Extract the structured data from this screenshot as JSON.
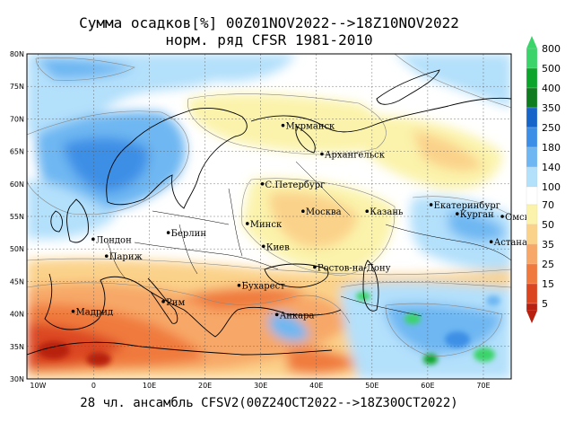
{
  "title_line1": "Сумма осадков[%] 00Z01NOV2022-->18Z10NOV2022",
  "title_line2": "норм. ряд CFSR 1981-2010",
  "footer": "28 чл. ансамбль CFSV2(00Z24OCT2022-->18Z30OCT2022)",
  "lat_labels": [
    "80N",
    "75N",
    "70N",
    "65N",
    "60N",
    "55N",
    "50N",
    "45N",
    "40N",
    "35N",
    "30N"
  ],
  "lon_labels": [
    "10W",
    "0",
    "10E",
    "20E",
    "30E",
    "40E",
    "50E",
    "60E",
    "70E"
  ],
  "cities": [
    {
      "name": "Мурманск"
    },
    {
      "name": "Архангельск"
    },
    {
      "name": "С.Петербург"
    },
    {
      "name": "Москва"
    },
    {
      "name": "Казань"
    },
    {
      "name": "Екатеринбург"
    },
    {
      "name": "Курган"
    },
    {
      "name": "Омск"
    },
    {
      "name": "Астана"
    },
    {
      "name": "Минск"
    },
    {
      "name": "Киев"
    },
    {
      "name": "Берлин"
    },
    {
      "name": "Лондон"
    },
    {
      "name": "Париж"
    },
    {
      "name": "Мадрид"
    },
    {
      "name": "Рим"
    },
    {
      "name": "Бухарест"
    },
    {
      "name": "Анкара"
    },
    {
      "name": "Ростов-на-Дону"
    }
  ],
  "colorbar": [
    {
      "label": "800",
      "color": "#3ad46a"
    },
    {
      "label": "500",
      "color": "#0ba52b"
    },
    {
      "label": "400",
      "color": "#0f7d1f"
    },
    {
      "label": "350",
      "color": "#1665c9"
    },
    {
      "label": "250",
      "color": "#3c8fe6"
    },
    {
      "label": "180",
      "color": "#6eb7f2"
    },
    {
      "label": "140",
      "color": "#b3e0fb"
    },
    {
      "label": "100",
      "color": "#ffffff"
    },
    {
      "label": "70",
      "color": "#fbf3ab"
    },
    {
      "label": "50",
      "color": "#fbd28a"
    },
    {
      "label": "35",
      "color": "#f7a868"
    },
    {
      "label": "25",
      "color": "#f07a3e"
    },
    {
      "label": "15",
      "color": "#db4620"
    },
    {
      "label": "5",
      "color": "#b82010"
    }
  ]
}
